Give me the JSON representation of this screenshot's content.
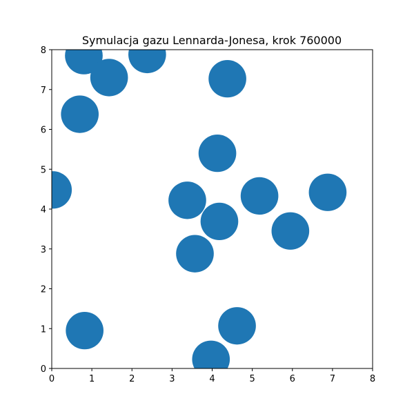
{
  "chart_data": {
    "type": "scatter",
    "title": "Symulacja gazu Lennarda-Jonesa, krok 760000",
    "xlabel": "",
    "ylabel": "",
    "xlim": [
      0,
      8
    ],
    "ylim": [
      0,
      8
    ],
    "xticks": [
      "0",
      "1",
      "2",
      "3",
      "4",
      "5",
      "6",
      "7",
      "8"
    ],
    "yticks": [
      "0",
      "1",
      "2",
      "3",
      "4",
      "5",
      "6",
      "7",
      "8"
    ],
    "grid": false,
    "marker_color": "#1f77b4",
    "particle_diameter": 0.94,
    "points": [
      {
        "x": 0.8,
        "y": 7.85
      },
      {
        "x": 1.43,
        "y": 7.3
      },
      {
        "x": 2.38,
        "y": 7.88
      },
      {
        "x": 0.7,
        "y": 6.38
      },
      {
        "x": 4.38,
        "y": 7.27
      },
      {
        "x": 4.13,
        "y": 5.4
      },
      {
        "x": 0.03,
        "y": 4.48
      },
      {
        "x": 3.38,
        "y": 4.22
      },
      {
        "x": 4.18,
        "y": 3.69
      },
      {
        "x": 5.18,
        "y": 4.33
      },
      {
        "x": 6.88,
        "y": 4.42
      },
      {
        "x": 5.95,
        "y": 3.45
      },
      {
        "x": 3.57,
        "y": 2.88
      },
      {
        "x": 0.82,
        "y": 0.95
      },
      {
        "x": 4.62,
        "y": 1.07
      },
      {
        "x": 3.97,
        "y": 0.23
      }
    ]
  }
}
